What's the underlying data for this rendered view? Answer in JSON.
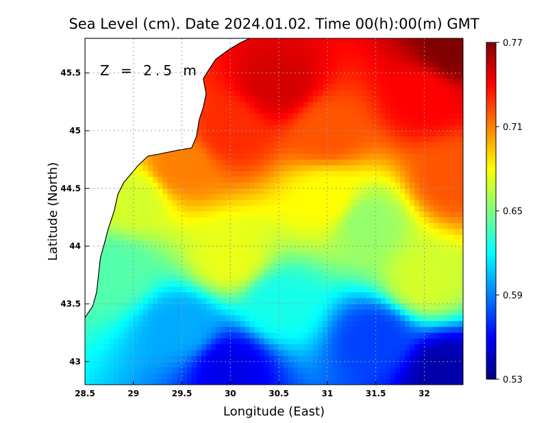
{
  "chart_data": {
    "type": "heatmap",
    "title": "Sea Level (cm). Date 2024.01.02. Time 00(h):00(m) GMT",
    "annotation": "Z = 2.5 m",
    "xlabel": "Longitude (East)",
    "ylabel": "Latitude (North)",
    "xlim": [
      28.5,
      32.4
    ],
    "ylim": [
      42.8,
      45.8
    ],
    "x_ticks": [
      28.5,
      29,
      29.5,
      30,
      30.5,
      31,
      31.5,
      32
    ],
    "x_tick_labels": [
      "28.5",
      "29",
      "29.5",
      "30",
      "30.5",
      "31",
      "31.5",
      "32"
    ],
    "y_ticks": [
      43,
      43.5,
      44,
      44.5,
      45,
      45.5
    ],
    "y_tick_labels": [
      "43",
      "43.5",
      "44",
      "44.5",
      "45",
      "45.5"
    ],
    "grid": true,
    "colorbar": {
      "min": 0.53,
      "max": 0.77,
      "ticks": [
        0.53,
        0.59,
        0.65,
        0.71,
        0.77
      ],
      "tick_labels": [
        "0.53",
        "0.59",
        "0.65",
        "0.71",
        "0.77"
      ]
    },
    "field_samples": [
      {
        "lon": 32.3,
        "lat": 45.7,
        "value": 0.77
      },
      {
        "lon": 30.5,
        "lat": 45.4,
        "value": 0.75
      },
      {
        "lon": 32.0,
        "lat": 45.3,
        "value": 0.74
      },
      {
        "lon": 30.0,
        "lat": 45.0,
        "value": 0.73
      },
      {
        "lon": 31.0,
        "lat": 45.0,
        "value": 0.72
      },
      {
        "lon": 29.5,
        "lat": 44.7,
        "value": 0.71
      },
      {
        "lon": 32.3,
        "lat": 44.6,
        "value": 0.72
      },
      {
        "lon": 31.0,
        "lat": 44.4,
        "value": 0.68
      },
      {
        "lon": 31.4,
        "lat": 44.2,
        "value": 0.655
      },
      {
        "lon": 29.0,
        "lat": 44.4,
        "value": 0.67
      },
      {
        "lon": 28.8,
        "lat": 43.8,
        "value": 0.64
      },
      {
        "lon": 30.0,
        "lat": 43.9,
        "value": 0.675
      },
      {
        "lon": 32.0,
        "lat": 43.7,
        "value": 0.67
      },
      {
        "lon": 30.5,
        "lat": 43.5,
        "value": 0.625
      },
      {
        "lon": 29.5,
        "lat": 43.3,
        "value": 0.6
      },
      {
        "lon": 31.5,
        "lat": 43.2,
        "value": 0.575
      },
      {
        "lon": 30.0,
        "lat": 42.95,
        "value": 0.555
      },
      {
        "lon": 32.2,
        "lat": 42.9,
        "value": 0.54
      }
    ],
    "land_outline_lonlat": [
      [
        28.5,
        43.38
      ],
      [
        28.58,
        43.48
      ],
      [
        28.62,
        43.6
      ],
      [
        28.64,
        43.75
      ],
      [
        28.66,
        43.9
      ],
      [
        28.7,
        44.02
      ],
      [
        28.74,
        44.15
      ],
      [
        28.8,
        44.3
      ],
      [
        28.84,
        44.45
      ],
      [
        28.9,
        44.55
      ],
      [
        28.98,
        44.63
      ],
      [
        29.05,
        44.7
      ],
      [
        29.15,
        44.78
      ],
      [
        29.28,
        44.8
      ],
      [
        29.45,
        44.83
      ],
      [
        29.6,
        44.85
      ],
      [
        29.65,
        44.95
      ],
      [
        29.68,
        45.1
      ],
      [
        29.72,
        45.2
      ],
      [
        29.75,
        45.32
      ],
      [
        29.72,
        45.45
      ],
      [
        29.78,
        45.53
      ],
      [
        29.85,
        45.62
      ],
      [
        29.98,
        45.7
      ],
      [
        30.1,
        45.76
      ],
      [
        30.2,
        45.8
      ],
      [
        28.5,
        45.8
      ]
    ]
  }
}
